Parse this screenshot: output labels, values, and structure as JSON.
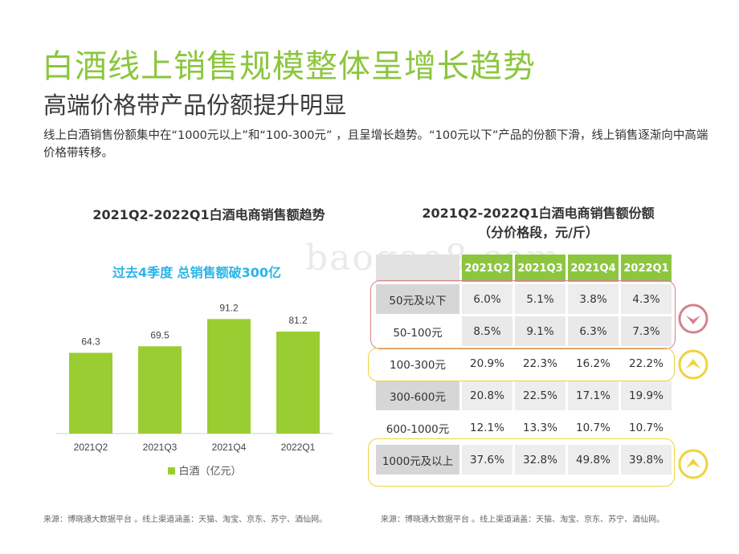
{
  "title": "白酒线上销售规模整体呈增长趋势",
  "subtitle": "高端价格带产品份额提升明显",
  "description": "线上白酒销售份额集中在“1000元以上”和“100-300元” ，且呈增长趋势。“100元以下”产品的份额下滑，线上销售逐渐向中高端价格带转移。",
  "watermark": "baogao8.com",
  "left_chart": {
    "title": "2021Q2-2022Q1白酒电商销售额趋势",
    "highlight": "过去4季度 总销售额破300亿",
    "legend": "白酒（亿元）",
    "source": "来源：博晓通大数据平台 。线上渠道涵盖：天猫、淘宝、京东、苏宁、酒仙网。"
  },
  "right_table": {
    "title_line1": "2021Q2-2022Q1白酒电商销售额份额",
    "title_line2": "（分价格段，元/斤）",
    "source": "来源：博晓通大数据平台 。线上渠道涵盖：天猫、淘宝、京东、苏宁、酒仙网。"
  },
  "chart_data": [
    {
      "type": "bar",
      "title": "2021Q2-2022Q1白酒电商销售额趋势",
      "categories": [
        "2021Q2",
        "2021Q3",
        "2021Q4",
        "2022Q1"
      ],
      "series": [
        {
          "name": "白酒（亿元）",
          "values": [
            64.3,
            69.5,
            91.2,
            81.2
          ],
          "color": "#9acd32"
        }
      ],
      "ylim": [
        0,
        100
      ],
      "grid": false,
      "legend_position": "bottom"
    },
    {
      "type": "table",
      "title": "2021Q2-2022Q1白酒电商销售额份额（分价格段，元/斤）",
      "columns": [
        "2021Q2",
        "2021Q3",
        "2021Q4",
        "2022Q1"
      ],
      "rows": [
        {
          "label": "50元及以下",
          "values": [
            "6.0%",
            "5.1%",
            "3.8%",
            "4.3%"
          ],
          "trend": "down"
        },
        {
          "label": "50-100元",
          "values": [
            "8.5%",
            "9.1%",
            "6.3%",
            "7.3%"
          ],
          "trend": "down"
        },
        {
          "label": "100-300元",
          "values": [
            "20.9%",
            "22.3%",
            "16.2%",
            "22.2%"
          ],
          "trend": "up"
        },
        {
          "label": "300-600元",
          "values": [
            "20.8%",
            "22.5%",
            "17.1%",
            "19.9%"
          ]
        },
        {
          "label": "600-1000元",
          "values": [
            "12.1%",
            "13.3%",
            "10.7%",
            "10.7%"
          ]
        },
        {
          "label": "1000元及以上",
          "values": [
            "37.6%",
            "32.8%",
            "49.8%",
            "39.8%"
          ],
          "trend": "up"
        }
      ],
      "header_color": "#8cc63f",
      "down_color": "#d4828c",
      "up_color": "#f0d23c"
    }
  ]
}
